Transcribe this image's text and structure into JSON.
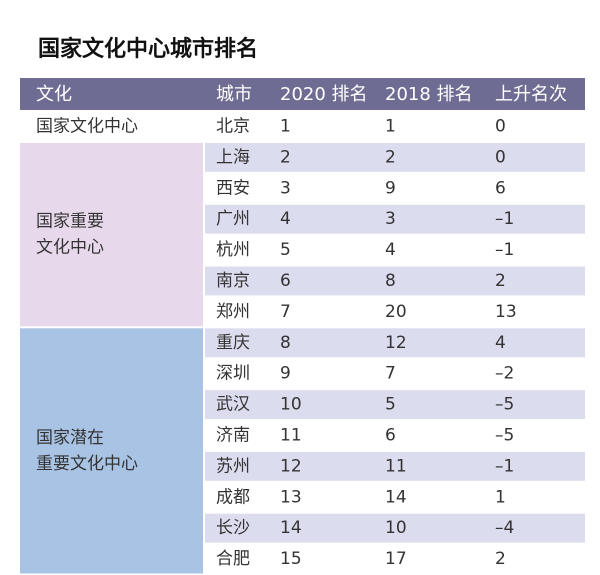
{
  "header": {
    "title": "国家文化中心城市排名"
  },
  "table": {
    "columns": [
      "文化",
      "城市",
      "2020 排名",
      "2018 排名",
      "上升名次"
    ],
    "groups": [
      {
        "label": [
          "国家文化中心"
        ],
        "rows": [
          [
            "北京",
            1,
            1,
            0
          ]
        ]
      },
      {
        "label": [
          "国家重要",
          "文化中心"
        ],
        "rows": [
          [
            "上海",
            2,
            2,
            0
          ],
          [
            "西安",
            3,
            9,
            6
          ],
          [
            "广州",
            4,
            3,
            "–1"
          ],
          [
            "杭州",
            5,
            4,
            "–1"
          ],
          [
            "南京",
            6,
            8,
            2
          ],
          [
            "郑州",
            7,
            20,
            13
          ]
        ]
      },
      {
        "label": [
          "国家潜在",
          "重要文化中心"
        ],
        "rows": [
          [
            "重庆",
            8,
            12,
            4
          ],
          [
            "深圳",
            9,
            7,
            "–2"
          ],
          [
            "武汉",
            10,
            5,
            "–5"
          ],
          [
            "济南",
            11,
            6,
            "–5"
          ],
          [
            "苏州",
            12,
            11,
            "–1"
          ],
          [
            "成都",
            13,
            14,
            1
          ],
          [
            "长沙",
            14,
            10,
            "–4"
          ],
          [
            "合肥",
            15,
            17,
            2
          ]
        ]
      }
    ]
  }
}
